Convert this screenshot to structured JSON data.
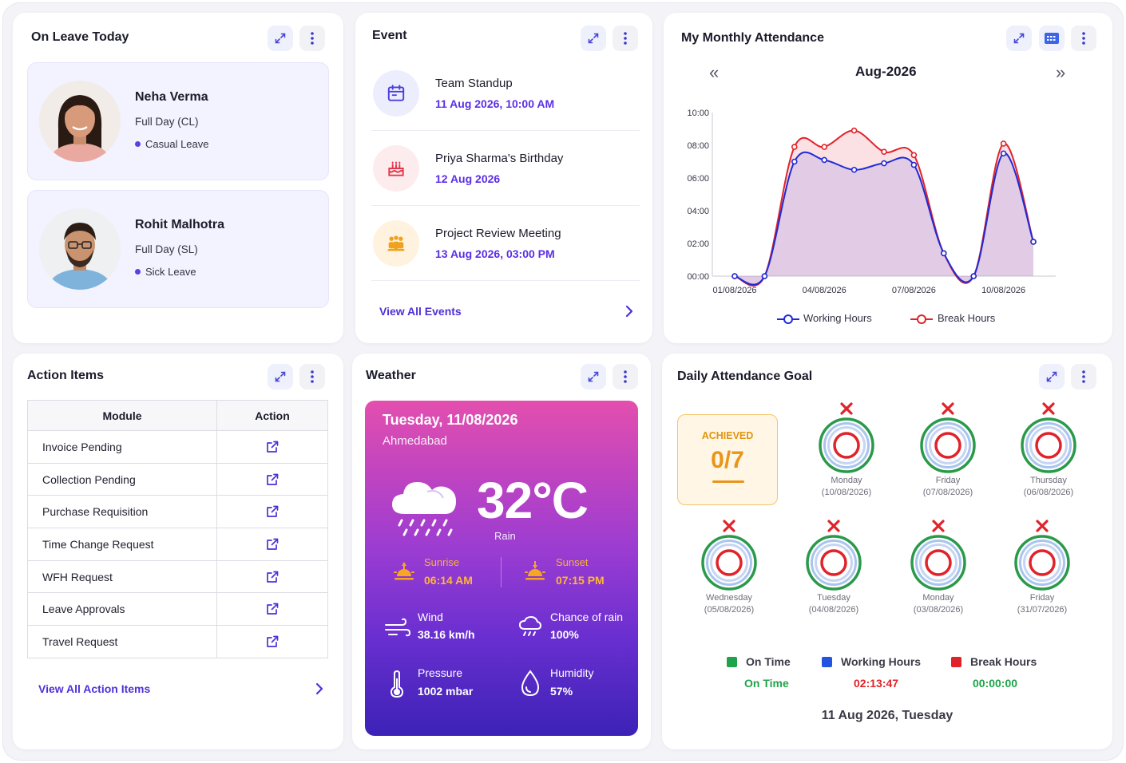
{
  "on_leave": {
    "title": "On Leave Today",
    "people": [
      {
        "name": "Neha Verma",
        "type": "Full Day (CL)",
        "category": "Casual Leave"
      },
      {
        "name": "Rohit Malhotra",
        "type": "Full Day (SL)",
        "category": "Sick Leave"
      }
    ]
  },
  "events": {
    "title": "Event",
    "items": [
      {
        "title": "Team Standup",
        "date": "11 Aug 2026, 10:00 AM",
        "icon": "calendar-icon"
      },
      {
        "title": "Priya Sharma's Birthday",
        "date": "12 Aug 2026",
        "icon": "cake-icon"
      },
      {
        "title": "Project Review Meeting",
        "date": "13 Aug 2026, 03:00 PM",
        "icon": "team-icon"
      }
    ],
    "view_all": "View All Events"
  },
  "attendance": {
    "title": "My Monthly Attendance",
    "month": "Aug-2026",
    "prev": "«",
    "next": "»",
    "legend": [
      "Working Hours",
      "Break Hours"
    ]
  },
  "chart_data": {
    "type": "line",
    "title": "Aug-2026",
    "x": [
      "01/08/2026",
      "02/08/2026",
      "03/08/2026",
      "04/08/2026",
      "05/08/2026",
      "06/08/2026",
      "07/08/2026",
      "08/08/2026",
      "09/08/2026",
      "10/08/2026",
      "11/08/2026"
    ],
    "x_tick_labels": [
      "01/08/2026",
      "04/08/2026",
      "07/08/2026",
      "10/08/2026"
    ],
    "y_tick_labels": [
      "00:00",
      "02:00",
      "04:00",
      "06:00",
      "08:00",
      "10:00"
    ],
    "ylim": [
      0,
      10
    ],
    "series": [
      {
        "name": "Working Hours",
        "color": "#1f2ad6",
        "values": [
          0,
          0,
          7.0,
          7.1,
          6.5,
          6.9,
          6.8,
          1.4,
          0,
          7.5,
          2.1
        ]
      },
      {
        "name": "Break Hours",
        "color": "#e0232a",
        "values": [
          0,
          0,
          7.9,
          7.9,
          8.9,
          7.6,
          7.4,
          1.4,
          0,
          8.1,
          2.1
        ]
      }
    ],
    "legend_position": "bottom",
    "grid": false
  },
  "action_items": {
    "title": "Action Items",
    "headers": [
      "Module",
      "Action"
    ],
    "rows": [
      "Invoice Pending",
      "Collection Pending",
      "Purchase Requisition",
      "Time Change Request",
      "WFH Request",
      "Leave Approvals",
      "Travel Request"
    ],
    "view_all": "View All Action Items"
  },
  "weather": {
    "title": "Weather",
    "date": "Tuesday, 11/08/2026",
    "city": "Ahmedabad",
    "temp": "32°C",
    "condition": "Rain",
    "sunrise_label": "Sunrise",
    "sunrise": "06:14 AM",
    "sunset_label": "Sunset",
    "sunset": "07:15 PM",
    "wind_label": "Wind",
    "wind": "38.16 km/h",
    "rain_label": "Chance of rain",
    "rain": "100%",
    "pressure_label": "Pressure",
    "pressure": "1002 mbar",
    "humidity_label": "Humidity",
    "humidity": "57%"
  },
  "goal": {
    "title": "Daily Attendance Goal",
    "achieved_label": "ACHIEVED",
    "achieved_value": "0/7",
    "days": [
      {
        "day": "Monday",
        "date": "(10/08/2026)"
      },
      {
        "day": "Friday",
        "date": "(07/08/2026)"
      },
      {
        "day": "Thursday",
        "date": "(06/08/2026)"
      },
      {
        "day": "Wednesday",
        "date": "(05/08/2026)"
      },
      {
        "day": "Tuesday",
        "date": "(04/08/2026)"
      },
      {
        "day": "Monday",
        "date": "(03/08/2026)"
      },
      {
        "day": "Friday",
        "date": "(31/07/2026)"
      }
    ],
    "legend": {
      "on_time_label": "On Time",
      "on_time_value": "On Time",
      "working_label": "Working Hours",
      "working_value": "02:13:47",
      "break_label": "Break Hours",
      "break_value": "00:00:00"
    },
    "footer_date": "11 Aug 2026, Tuesday",
    "colors": {
      "on_time": "#1fa34a",
      "working": "#2453e0",
      "break": "#e0232a"
    }
  }
}
